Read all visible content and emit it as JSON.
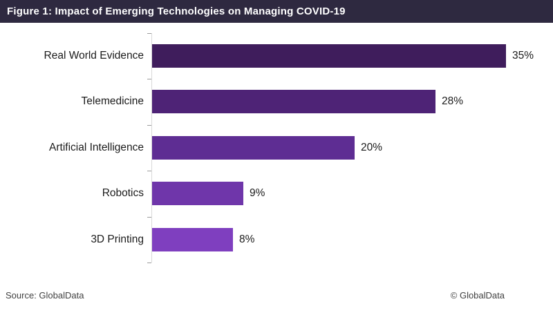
{
  "title_bar": {
    "title": "Figure 1: Impact of Emerging Technologies on Managing COVID-19",
    "background": "#2e2940",
    "text_color": "#ffffff"
  },
  "chart_data": {
    "type": "bar",
    "orientation": "horizontal",
    "title": "Figure 1: Impact of Emerging Technologies on Managing COVID-19",
    "categories": [
      "Real World Evidence",
      "Telemedicine",
      "Artificial Intelligence",
      "Robotics",
      "3D Printing"
    ],
    "values": [
      35,
      28,
      20,
      9,
      8
    ],
    "value_labels": [
      "35%",
      "28%",
      "20%",
      "9%",
      "8%"
    ],
    "bar_colors": [
      "#3f1d5c",
      "#4e2376",
      "#5e2d93",
      "#6f36aa",
      "#7f3fbf"
    ],
    "xlim": [
      0,
      35
    ],
    "xlabel": "",
    "ylabel": "",
    "grid": false,
    "legend": "none",
    "value_label_position": "end-of-bar",
    "axis_line_color": "#d9d9d9",
    "tick_color": "#9b9b9b"
  },
  "footer": {
    "source": "Source: GlobalData",
    "copyright": "© GlobalData"
  }
}
